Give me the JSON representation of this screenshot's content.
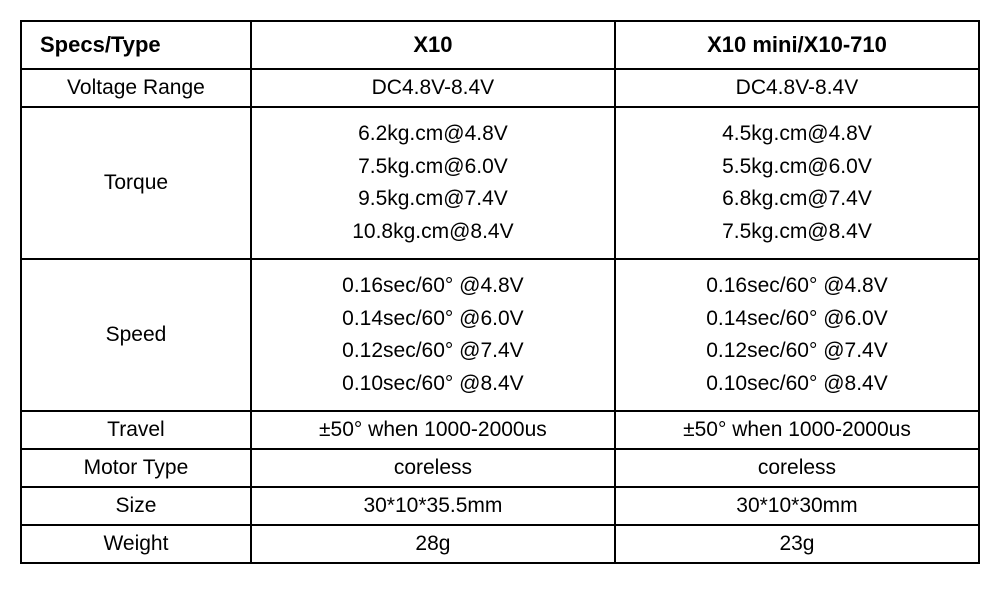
{
  "headers": {
    "spec": "Specs/Type",
    "col1": "X10",
    "col2": "X10 mini/X10-710"
  },
  "rows": {
    "voltage": {
      "label": "Voltage Range",
      "col1": "DC4.8V-8.4V",
      "col2": "DC4.8V-8.4V"
    },
    "torque": {
      "label": "Torque",
      "col1": [
        "6.2kg.cm@4.8V",
        "7.5kg.cm@6.0V",
        "9.5kg.cm@7.4V",
        "10.8kg.cm@8.4V"
      ],
      "col2": [
        "4.5kg.cm@4.8V",
        "5.5kg.cm@6.0V",
        "6.8kg.cm@7.4V",
        "7.5kg.cm@8.4V"
      ]
    },
    "speed": {
      "label": "Speed",
      "col1": [
        "0.16sec/60° @4.8V",
        "0.14sec/60° @6.0V",
        "0.12sec/60° @7.4V",
        "0.10sec/60° @8.4V"
      ],
      "col2": [
        "0.16sec/60° @4.8V",
        "0.14sec/60° @6.0V",
        "0.12sec/60° @7.4V",
        "0.10sec/60° @8.4V"
      ]
    },
    "travel": {
      "label": "Travel",
      "col1": "±50° when 1000-2000us",
      "col2": "±50° when 1000-2000us"
    },
    "motor": {
      "label": "Motor Type",
      "col1": "coreless",
      "col2": "coreless"
    },
    "size": {
      "label": "Size",
      "col1": "30*10*35.5mm",
      "col2": "30*10*30mm"
    },
    "weight": {
      "label": "Weight",
      "col1": "28g",
      "col2": "23g"
    }
  }
}
